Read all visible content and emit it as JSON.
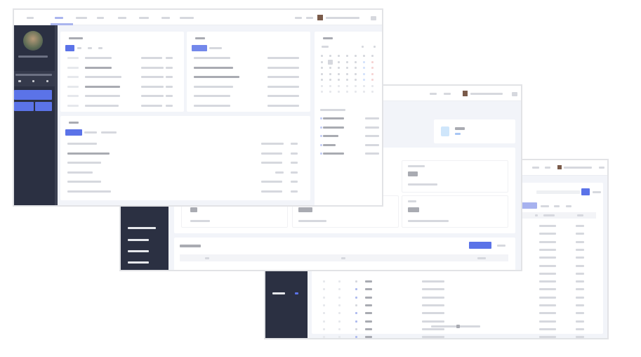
{
  "theme": {
    "accent": "#5b73e8",
    "sidebar": "#2b3042",
    "background": "#f2f4f9",
    "card": "#ffffff"
  },
  "icons": [
    "user-avatar-icon",
    "settings-icon",
    "chevron-left-icon",
    "chevron-right-icon",
    "search-icon",
    "stat-icon"
  ],
  "windows": [
    {
      "name": "home-dashboard",
      "text": ""
    },
    {
      "name": "statistics-dashboard",
      "text": ""
    },
    {
      "name": "data-table-page",
      "text": ""
    }
  ]
}
